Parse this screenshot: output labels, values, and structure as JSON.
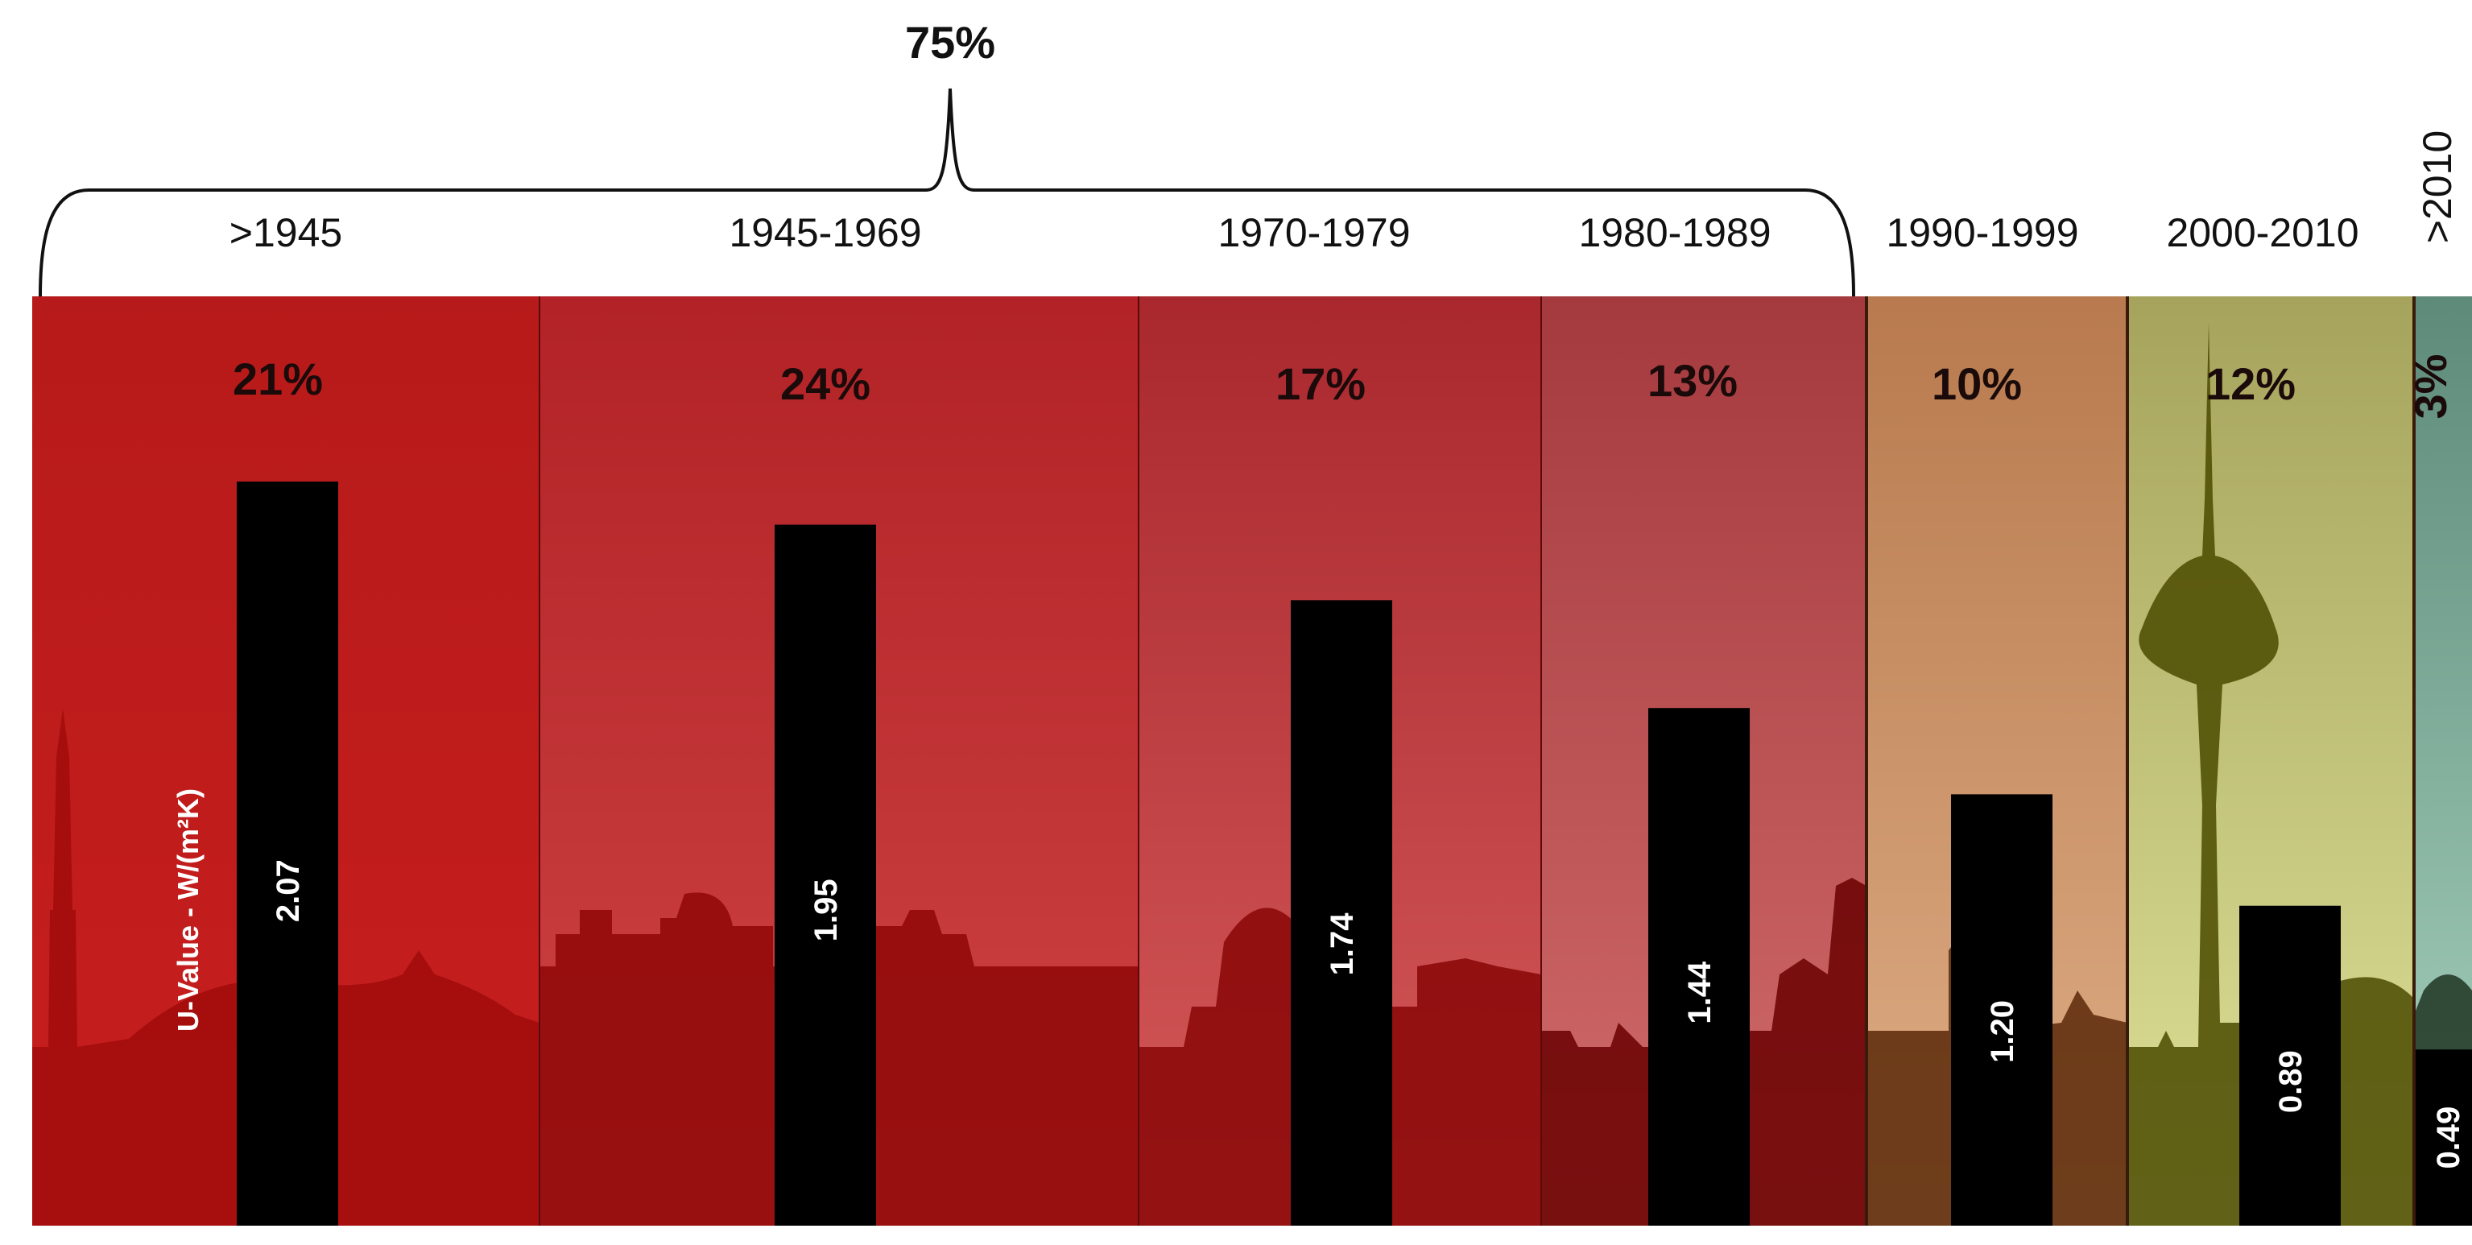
{
  "chart_data": {
    "type": "bar",
    "categories": [
      ">1945",
      "1945-1969",
      "1970-1979",
      "1980-1989",
      "1990-1999",
      "2000-2010",
      ">2010"
    ],
    "values": [
      2.07,
      1.95,
      1.74,
      1.44,
      1.2,
      0.89,
      0.49
    ],
    "value_labels": [
      "2.07",
      "1.95",
      "1.74",
      "1.44",
      "1.20",
      "0.89",
      "0.49"
    ],
    "shares": [
      "21%",
      "24%",
      "17%",
      "13%",
      "10%",
      "12%",
      "3%"
    ],
    "share_values": [
      21,
      24,
      17,
      13,
      10,
      12,
      3
    ],
    "bracket": {
      "label": "75%",
      "covers": [
        ">1945",
        "1945-1969",
        "1970-1979",
        "1980-1989"
      ]
    },
    "ylabel": "U-Value - W/(m²K)",
    "ylim": [
      0,
      2.6
    ],
    "grid": false,
    "legend": "none",
    "colors": {
      "band_top": [
        "#b71a1a",
        "#b22226",
        "#a9282e",
        "#a53a3e",
        "#b87a4e",
        "#a6a45c",
        "#5e8a7a"
      ],
      "band_bottom": [
        "#c81e1e",
        "#cf4545",
        "#d65a5a",
        "#d26c6c",
        "#dfae86",
        "#dfe29a",
        "#a8d4c0"
      ],
      "skyline": [
        "#a10c0c",
        "#8f0707",
        "#880606",
        "#6a0000",
        "#5a2908",
        "#4b4b00",
        "#1e3522"
      ],
      "bar": "#000000"
    }
  }
}
